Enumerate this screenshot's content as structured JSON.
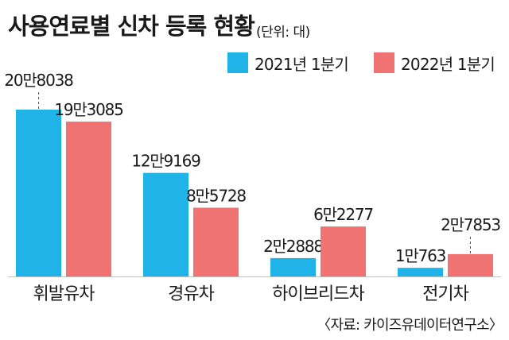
{
  "chart_data": {
    "type": "bar",
    "title": "사용연료별 신차 등록 현황",
    "subtitle": "(단위: 대)",
    "source": "〈자료: 카이즈유데이터연구소〉",
    "categories": [
      "휘발유차",
      "경유차",
      "하이브리드차",
      "전기차"
    ],
    "series": [
      {
        "name": "2021년 1분기",
        "color": "#1fb3e8",
        "values": [
          208038,
          129169,
          22888,
          10763
        ],
        "labels": [
          "20만8038",
          "12만9169",
          "2만2888",
          "1만763"
        ]
      },
      {
        "name": "2022년 1분기",
        "color": "#f07373",
        "values": [
          193085,
          85728,
          62277,
          27853
        ],
        "labels": [
          "19만3085",
          "8만5728",
          "6만2277",
          "2만7853"
        ]
      }
    ],
    "legend": "top-right",
    "grid": false,
    "ylim": [
      0,
      208038
    ]
  }
}
